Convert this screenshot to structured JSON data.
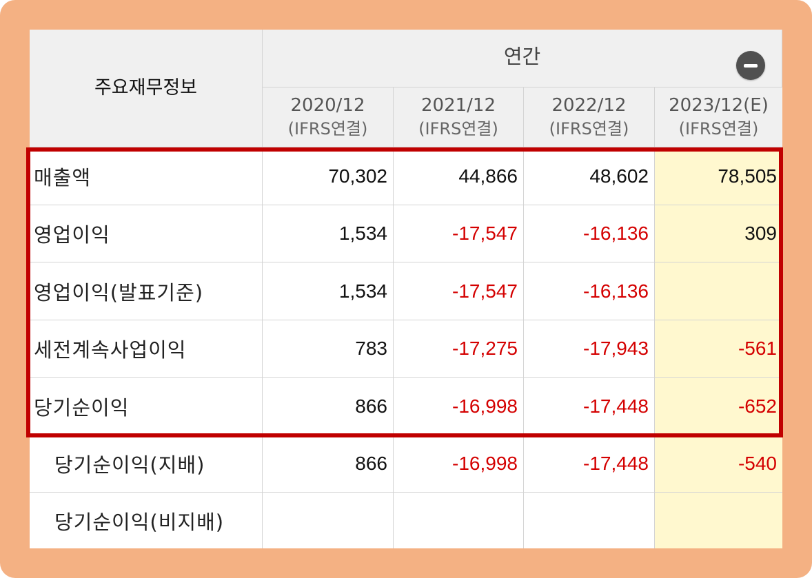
{
  "header": {
    "row_label": "주요재무정보",
    "group_label": "연간",
    "periods": [
      {
        "year": "2020/12",
        "basis": "(IFRS연결)"
      },
      {
        "year": "2021/12",
        "basis": "(IFRS연결)"
      },
      {
        "year": "2022/12",
        "basis": "(IFRS연결)"
      },
      {
        "year": "2023/12(E)",
        "basis": "(IFRS연결)"
      }
    ]
  },
  "rows": [
    {
      "label": "매출액",
      "values": [
        "70,302",
        "44,866",
        "48,602",
        "78,505"
      ]
    },
    {
      "label": "영업이익",
      "values": [
        "1,534",
        "-17,547",
        "-16,136",
        "309"
      ]
    },
    {
      "label": "영업이익(발표기준)",
      "values": [
        "1,534",
        "-17,547",
        "-16,136",
        ""
      ]
    },
    {
      "label": "세전계속사업이익",
      "values": [
        "783",
        "-17,275",
        "-17,943",
        "-561"
      ]
    },
    {
      "label": "당기순이익",
      "values": [
        "866",
        "-16,998",
        "-17,448",
        "-652"
      ]
    },
    {
      "label": "당기순이익(지배)",
      "values": [
        "866",
        "-16,998",
        "-17,448",
        "-540"
      ]
    },
    {
      "label": "당기순이익(비지배)",
      "values": [
        "",
        "",
        "",
        ""
      ]
    }
  ],
  "colors": {
    "frame": "#f4b183",
    "highlight_border": "#c00000",
    "negative": "#d40000",
    "estimate_bg": "#fff8cf",
    "header_bg": "#f0f0f0"
  },
  "icons": {
    "collapse": "minus-circle-icon"
  }
}
